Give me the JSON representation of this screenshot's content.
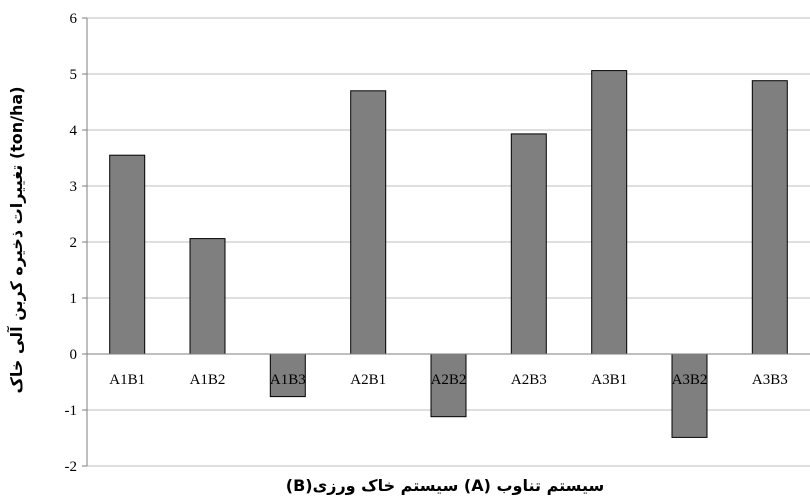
{
  "chart_data": {
    "type": "bar",
    "title": "",
    "xlabel": "سیستم تناوب (A) سیستم خاک ورزی(B)",
    "ylabel": "تغییرات ذخیره کربن آلی خاک (ton/ha)",
    "categories": [
      "A1B1",
      "A1B2",
      "A1B3",
      "A2B1",
      "A2B2",
      "A2B3",
      "A3B1",
      "A3B2",
      "A3B3"
    ],
    "series": [
      {
        "values": [
          3.55,
          2.06,
          -0.76,
          4.7,
          -1.12,
          3.93,
          5.06,
          -1.49,
          4.88
        ]
      }
    ],
    "ylim": [
      -2,
      6
    ],
    "yticks": [
      -2,
      -1,
      0,
      1,
      2,
      3,
      4,
      5,
      6
    ],
    "grid": true,
    "legend": "none",
    "bar_color": "#7f7f7f",
    "bar_edge_color": "#000000",
    "grid_color": "#bfbfbf",
    "axis_color": "#7f7f7f"
  }
}
